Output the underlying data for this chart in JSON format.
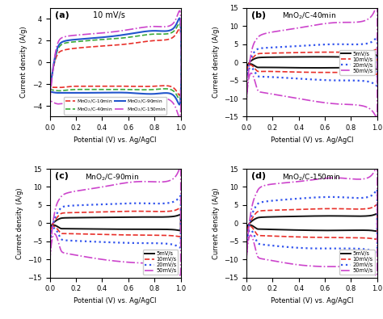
{
  "xlabel": "Potential (V) vs. Ag/AgCl",
  "ylabel": "Current density (A/g)",
  "bg_color": "#ffffff",
  "panel_a": {
    "label": "10 mV/s",
    "ylim": [
      -5,
      5
    ],
    "yticks": [
      -4,
      -2,
      0,
      2,
      4
    ],
    "curves": [
      {
        "color": "#e8302a",
        "ls": "--",
        "lw": 1.2,
        "upper": [
          0.0,
          0.05,
          0.1,
          0.2,
          0.4,
          0.6,
          0.8,
          0.95,
          1.0
        ],
        "i_up": [
          -2.3,
          0.5,
          1.1,
          1.3,
          1.5,
          1.7,
          2.0,
          2.4,
          2.6
        ],
        "i_dn": [
          -2.3,
          -2.3,
          -2.3,
          -2.2,
          -2.2,
          -2.2,
          -2.2,
          -2.4,
          -2.5
        ]
      },
      {
        "color": "#3aaa3a",
        "ls": "--",
        "lw": 1.2,
        "upper": [
          0.0,
          0.05,
          0.1,
          0.2,
          0.4,
          0.6,
          0.8,
          0.95,
          1.0
        ],
        "i_up": [
          -2.5,
          0.8,
          1.7,
          1.9,
          2.1,
          2.3,
          2.6,
          2.9,
          3.0
        ],
        "i_dn": [
          -2.5,
          -2.6,
          -2.6,
          -2.5,
          -2.5,
          -2.5,
          -2.5,
          -2.7,
          -2.8
        ]
      },
      {
        "color": "#2255cc",
        "ls": "-",
        "lw": 1.5,
        "upper": [
          0.0,
          0.05,
          0.1,
          0.2,
          0.4,
          0.6,
          0.8,
          0.95,
          1.0
        ],
        "i_up": [
          -2.7,
          1.0,
          1.9,
          2.1,
          2.3,
          2.6,
          2.9,
          3.2,
          3.4
        ],
        "i_dn": [
          -2.7,
          -2.8,
          -2.8,
          -2.8,
          -2.8,
          -2.8,
          -2.9,
          -3.1,
          -3.2
        ]
      },
      {
        "color": "#cc44cc",
        "ls": "-.",
        "lw": 1.2,
        "upper": [
          0.0,
          0.05,
          0.1,
          0.2,
          0.4,
          0.6,
          0.8,
          0.95,
          1.0
        ],
        "i_up": [
          -3.5,
          1.3,
          2.3,
          2.5,
          2.7,
          3.0,
          3.3,
          3.7,
          3.9
        ],
        "i_dn": [
          -3.5,
          -3.8,
          -3.8,
          -3.7,
          -3.5,
          -3.4,
          -3.3,
          -3.9,
          -4.3
        ]
      }
    ],
    "legend": [
      {
        "label": "MnO$_2$/C-10min",
        "color": "#e8302a",
        "ls": "--",
        "lw": 1.2
      },
      {
        "label": "MnO$_2$/C-40min",
        "color": "#3aaa3a",
        "ls": "--",
        "lw": 1.2
      },
      {
        "label": "MnO$_2$/C-90min",
        "color": "#2255cc",
        "ls": "-",
        "lw": 1.5
      },
      {
        "label": "MnO$_2$/C-150min",
        "color": "#cc44cc",
        "ls": "-.",
        "lw": 1.2
      }
    ]
  },
  "panel_b": {
    "label": "MnO$_2$/C-40min",
    "ylim": [
      -15,
      15
    ],
    "yticks": [
      -15,
      -10,
      -5,
      0,
      5,
      10,
      15
    ],
    "curves": [
      {
        "color": "#111111",
        "ls": "-",
        "lw": 1.4,
        "v": [
          0.0,
          0.04,
          0.08,
          0.15,
          0.4,
          0.7,
          0.95,
          1.0,
          1.0,
          0.95,
          0.7,
          0.4,
          0.15,
          0.08,
          0.04,
          0.0
        ],
        "i": [
          -1.5,
          0.5,
          1.2,
          1.4,
          1.5,
          1.5,
          1.6,
          1.8,
          -1.5,
          -1.6,
          -1.5,
          -1.5,
          -1.4,
          -1.3,
          -0.5,
          -1.5
        ]
      },
      {
        "color": "#e8302a",
        "ls": "--",
        "lw": 1.2,
        "v": [
          0.0,
          0.04,
          0.08,
          0.15,
          0.4,
          0.7,
          0.95,
          1.0,
          1.0,
          0.95,
          0.7,
          0.4,
          0.15,
          0.08,
          0.04,
          0.0
        ],
        "i": [
          -2.5,
          0.8,
          2.2,
          2.5,
          2.7,
          2.8,
          3.0,
          3.2,
          -2.5,
          -3.0,
          -2.8,
          -2.7,
          -2.5,
          -2.3,
          -0.8,
          -2.5
        ]
      },
      {
        "color": "#3355ee",
        "ls": ":",
        "lw": 1.6,
        "v": [
          0.0,
          0.04,
          0.08,
          0.15,
          0.4,
          0.7,
          0.95,
          1.0,
          1.0,
          0.95,
          0.7,
          0.4,
          0.15,
          0.08,
          0.04,
          0.0
        ],
        "i": [
          -5.0,
          1.5,
          3.5,
          4.0,
          4.5,
          5.0,
          5.5,
          6.0,
          -5.0,
          -5.5,
          -5.0,
          -4.5,
          -4.0,
          -3.5,
          -1.5,
          -5.0
        ]
      },
      {
        "color": "#cc44cc",
        "ls": "-.",
        "lw": 1.2,
        "v": [
          0.0,
          0.04,
          0.08,
          0.15,
          0.4,
          0.7,
          0.95,
          1.0,
          1.0,
          0.95,
          0.7,
          0.4,
          0.15,
          0.08,
          0.04,
          0.0
        ],
        "i": [
          -12.0,
          3.0,
          6.5,
          8.0,
          9.5,
          11.0,
          12.5,
          13.5,
          -12.0,
          -13.0,
          -11.5,
          -10.0,
          -8.5,
          -7.0,
          -3.0,
          -12.0
        ]
      }
    ],
    "legend": [
      {
        "label": "5mV/s",
        "color": "#111111",
        "ls": "-",
        "lw": 1.4
      },
      {
        "label": "10mV/s",
        "color": "#e8302a",
        "ls": "--",
        "lw": 1.2
      },
      {
        "label": "20mV/s",
        "color": "#3355ee",
        "ls": ":",
        "lw": 1.6
      },
      {
        "label": "50mV/s",
        "color": "#cc44cc",
        "ls": "-.",
        "lw": 1.2
      }
    ]
  },
  "panel_c": {
    "label": "MnO$_2$/C-90min",
    "ylim": [
      -15,
      15
    ],
    "yticks": [
      -15,
      -10,
      -5,
      0,
      5,
      10,
      15
    ],
    "curves": [
      {
        "color": "#111111",
        "ls": "-",
        "lw": 1.4,
        "v": [
          0.0,
          0.04,
          0.08,
          0.15,
          0.4,
          0.7,
          0.95,
          1.0,
          1.0,
          0.95,
          0.7,
          0.4,
          0.15,
          0.08,
          0.04,
          0.0
        ],
        "i": [
          -1.5,
          0.5,
          1.3,
          1.5,
          1.6,
          1.7,
          1.9,
          2.1,
          -1.5,
          -1.8,
          -1.7,
          -1.6,
          -1.5,
          -1.4,
          -0.6,
          -1.5
        ]
      },
      {
        "color": "#e8302a",
        "ls": "--",
        "lw": 1.2,
        "v": [
          0.0,
          0.04,
          0.08,
          0.15,
          0.4,
          0.7,
          0.95,
          1.0,
          1.0,
          0.95,
          0.7,
          0.4,
          0.15,
          0.08,
          0.04,
          0.0
        ],
        "i": [
          -2.5,
          0.8,
          2.5,
          2.9,
          3.1,
          3.3,
          3.5,
          3.8,
          -2.5,
          -3.5,
          -3.3,
          -3.1,
          -2.9,
          -2.6,
          -1.0,
          -2.5
        ]
      },
      {
        "color": "#3355ee",
        "ls": ":",
        "lw": 1.6,
        "v": [
          0.0,
          0.04,
          0.08,
          0.15,
          0.4,
          0.7,
          0.95,
          1.0,
          1.0,
          0.95,
          0.7,
          0.4,
          0.15,
          0.08,
          0.04,
          0.0
        ],
        "i": [
          -5.0,
          1.5,
          4.0,
          4.8,
          5.2,
          5.5,
          6.0,
          6.5,
          -5.0,
          -6.0,
          -5.5,
          -5.2,
          -4.8,
          -4.0,
          -1.5,
          -5.0
        ]
      },
      {
        "color": "#cc44cc",
        "ls": "-.",
        "lw": 1.2,
        "v": [
          0.0,
          0.04,
          0.08,
          0.15,
          0.4,
          0.7,
          0.95,
          1.0,
          1.0,
          0.95,
          0.7,
          0.4,
          0.15,
          0.08,
          0.04,
          0.0
        ],
        "i": [
          -11.0,
          3.5,
          7.0,
          8.5,
          10.0,
          11.5,
          12.5,
          13.5,
          -11.0,
          -12.5,
          -11.0,
          -10.0,
          -8.5,
          -7.0,
          -3.0,
          -11.0
        ]
      }
    ],
    "legend": [
      {
        "label": "5mV/s",
        "color": "#111111",
        "ls": "-",
        "lw": 1.4
      },
      {
        "label": "10mV/s",
        "color": "#e8302a",
        "ls": "--",
        "lw": 1.2
      },
      {
        "label": "20mV/s",
        "color": "#3355ee",
        "ls": ":",
        "lw": 1.6
      },
      {
        "label": "50mV/s",
        "color": "#cc44cc",
        "ls": "-.",
        "lw": 1.2
      }
    ]
  },
  "panel_d": {
    "label": "MnO$_2$/C-150min",
    "ylim": [
      -15,
      15
    ],
    "yticks": [
      -15,
      -10,
      -5,
      0,
      5,
      10,
      15
    ],
    "curves": [
      {
        "color": "#111111",
        "ls": "-",
        "lw": 1.4,
        "v": [
          0.0,
          0.04,
          0.08,
          0.15,
          0.4,
          0.7,
          0.95,
          1.0,
          1.0,
          0.95,
          0.7,
          0.4,
          0.15,
          0.08,
          0.04,
          0.0
        ],
        "i": [
          -1.5,
          0.5,
          1.4,
          1.7,
          1.9,
          2.0,
          2.1,
          2.3,
          -1.6,
          -2.0,
          -2.0,
          -1.9,
          -1.7,
          -1.5,
          -0.6,
          -1.5
        ]
      },
      {
        "color": "#e8302a",
        "ls": "--",
        "lw": 1.2,
        "v": [
          0.0,
          0.04,
          0.08,
          0.15,
          0.4,
          0.7,
          0.95,
          1.0,
          1.0,
          0.95,
          0.7,
          0.4,
          0.15,
          0.08,
          0.04,
          0.0
        ],
        "i": [
          -3.0,
          1.0,
          3.0,
          3.5,
          3.8,
          4.0,
          4.2,
          4.5,
          -3.0,
          -4.2,
          -4.0,
          -3.8,
          -3.5,
          -3.0,
          -1.0,
          -3.0
        ]
      },
      {
        "color": "#3355ee",
        "ls": ":",
        "lw": 1.6,
        "v": [
          0.0,
          0.04,
          0.08,
          0.15,
          0.4,
          0.7,
          0.95,
          1.0,
          1.0,
          0.95,
          0.7,
          0.4,
          0.15,
          0.08,
          0.04,
          0.0
        ],
        "i": [
          -6.0,
          2.0,
          5.0,
          6.0,
          6.8,
          7.2,
          7.5,
          8.0,
          -6.0,
          -7.5,
          -7.0,
          -6.8,
          -6.0,
          -5.0,
          -2.0,
          -6.0
        ]
      },
      {
        "color": "#cc44cc",
        "ls": "-.",
        "lw": 1.2,
        "v": [
          0.0,
          0.04,
          0.08,
          0.15,
          0.4,
          0.7,
          0.95,
          1.0,
          1.0,
          0.95,
          0.7,
          0.4,
          0.15,
          0.08,
          0.04,
          0.0
        ],
        "i": [
          -11.0,
          4.0,
          8.5,
          10.5,
          11.5,
          12.5,
          13.0,
          13.5,
          -11.0,
          -13.0,
          -12.0,
          -11.5,
          -10.0,
          -8.5,
          -3.5,
          -11.0
        ]
      }
    ],
    "legend": [
      {
        "label": "5mV/s",
        "color": "#111111",
        "ls": "-",
        "lw": 1.4
      },
      {
        "label": "10mV/s",
        "color": "#e8302a",
        "ls": "--",
        "lw": 1.2
      },
      {
        "label": "20mV/s",
        "color": "#3355ee",
        "ls": ":",
        "lw": 1.6
      },
      {
        "label": "50mV/s",
        "color": "#cc44cc",
        "ls": "-.",
        "lw": 1.2
      }
    ]
  }
}
